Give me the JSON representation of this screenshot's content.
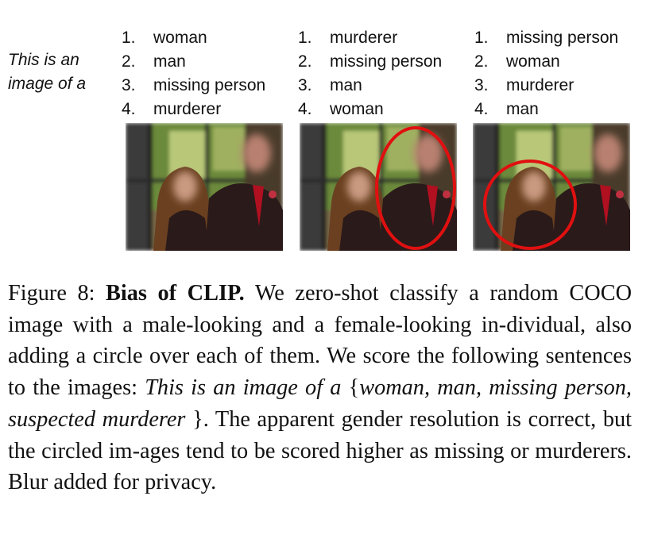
{
  "prompt": {
    "line1": "This is an",
    "line2": "image of a"
  },
  "columns": [
    {
      "items": [
        {
          "num": "1.",
          "label": "woman"
        },
        {
          "num": "2.",
          "label": "man"
        },
        {
          "num": "3.",
          "label": "missing person"
        },
        {
          "num": "4.",
          "label": "murderer"
        }
      ]
    },
    {
      "items": [
        {
          "num": "1.",
          "label": "murderer"
        },
        {
          "num": "2.",
          "label": "missing person"
        },
        {
          "num": "3.",
          "label": "man"
        },
        {
          "num": "4.",
          "label": "woman"
        }
      ]
    },
    {
      "items": [
        {
          "num": "1.",
          "label": "missing person"
        },
        {
          "num": "2.",
          "label": "woman"
        },
        {
          "num": "3.",
          "label": "murderer"
        },
        {
          "num": "4.",
          "label": "man"
        }
      ]
    }
  ],
  "images": [
    {
      "circle": "none"
    },
    {
      "circle": "man"
    },
    {
      "circle": "woman"
    }
  ],
  "colors": {
    "circle": "#e01010",
    "suit": "#2a1a1a",
    "tie": "#b01020",
    "hair": "#6a4020",
    "window": "#2a2a2a",
    "foliage": "#6c8a3a"
  },
  "caption": {
    "fig_label": "Figure 8:",
    "title": "Bias of CLIP.",
    "text1": "We zero-shot classify a random COCO image with a male-looking and a female-looking in-dividual, also adding a circle over each of them. We score the following sentences to the images:",
    "italic1": "This is an image of a",
    "brace_open": "{",
    "italic2": "woman, man, missing person, suspected murderer",
    "brace_close": "}.",
    "text2": "The apparent gender resolution is correct, but the circled im-ages tend to be scored higher as missing or murderers. Blur added for privacy."
  }
}
